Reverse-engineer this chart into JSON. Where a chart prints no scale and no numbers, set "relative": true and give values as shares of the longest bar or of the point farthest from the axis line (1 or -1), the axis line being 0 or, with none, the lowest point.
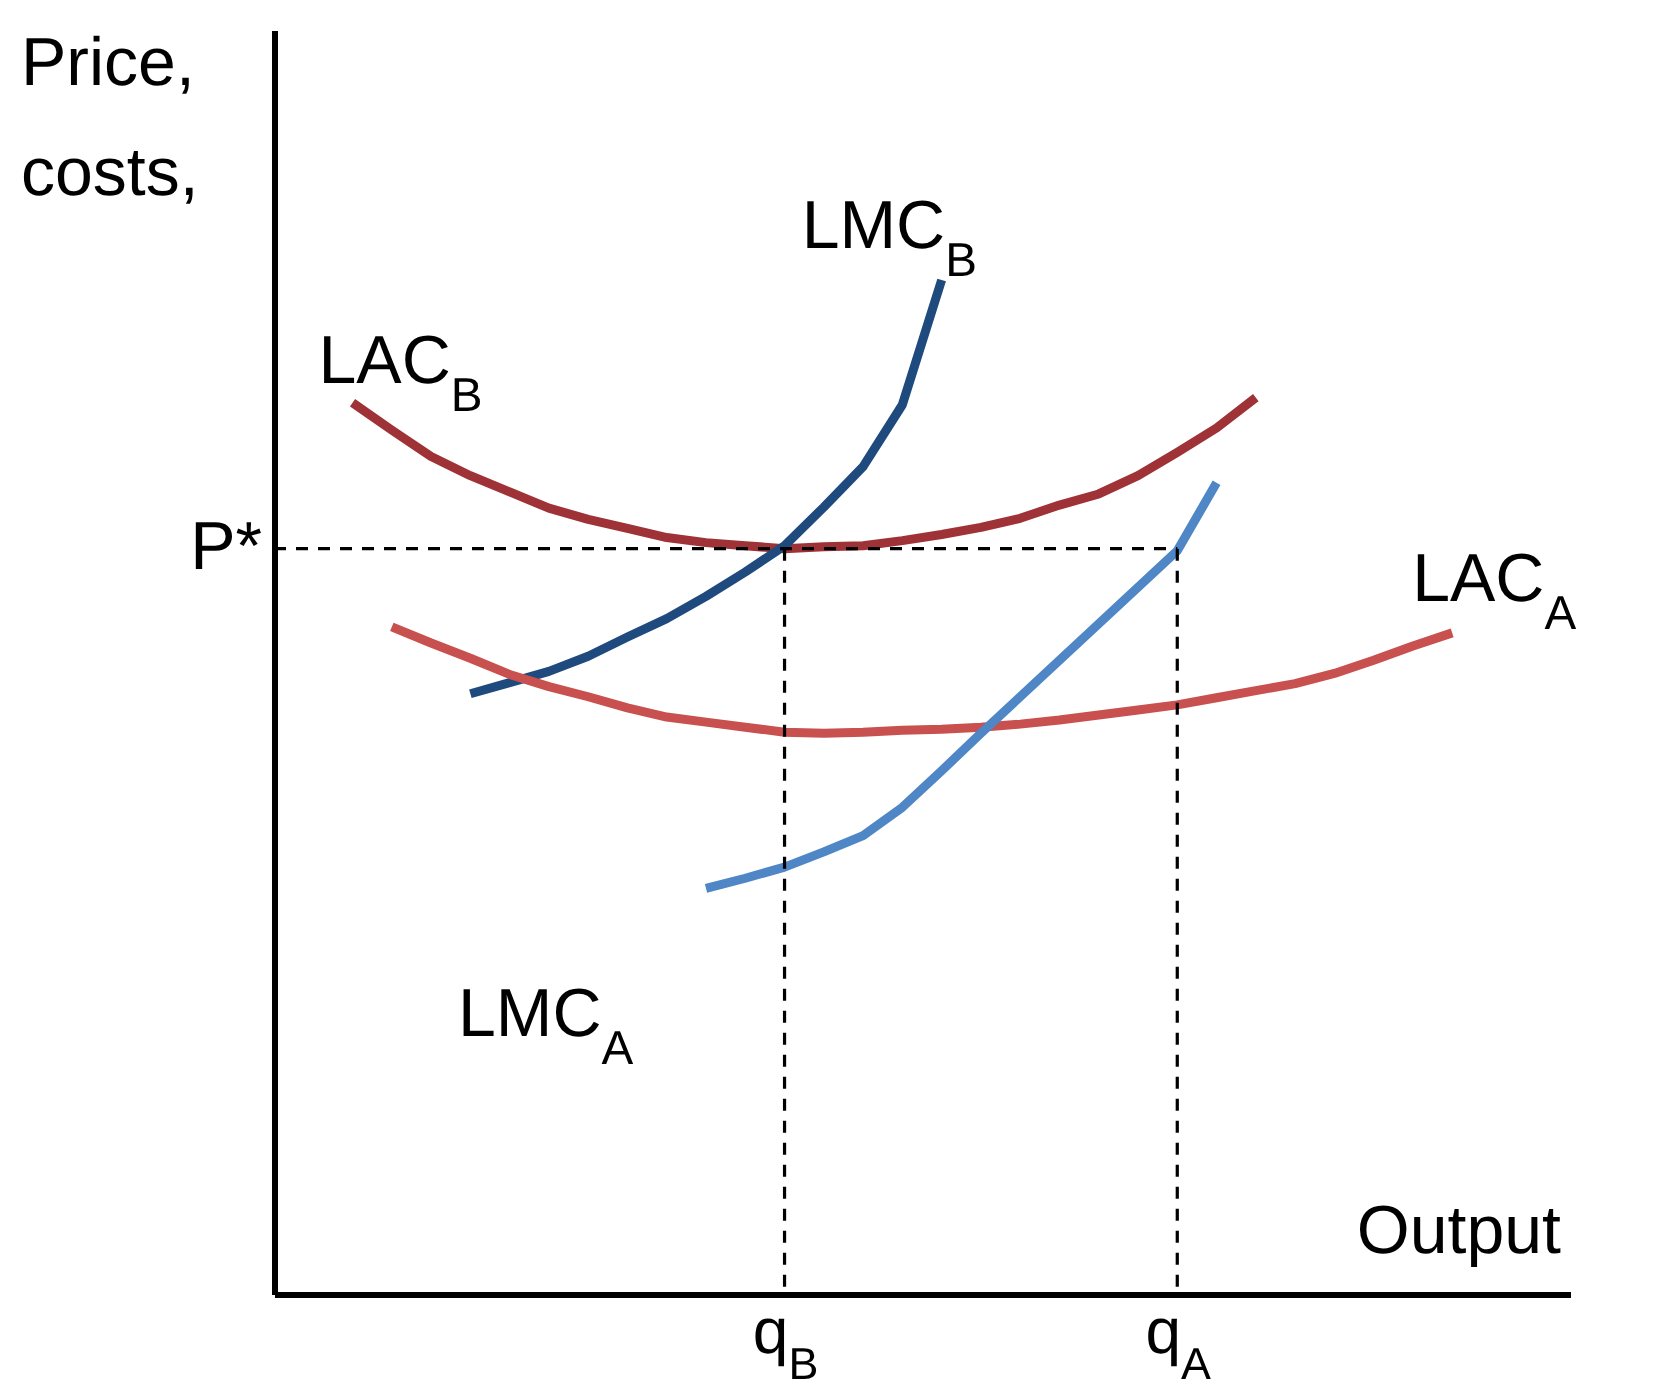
{
  "chart_data": {
    "type": "line",
    "relative": true,
    "xlabel": "Output",
    "ylabel": "Price,\ncosts,",
    "tick_labels": "x",
    "grid": false,
    "marker": "none",
    "categories": [
      null,
      null,
      null,
      null,
      null,
      null,
      null,
      null,
      null,
      null,
      null,
      null,
      null,
      "q$_{B}$",
      null,
      null,
      null,
      null,
      null,
      null,
      null,
      null,
      null,
      "q$_{A}$",
      null,
      null,
      null,
      null,
      null,
      null,
      null,
      null,
      null,
      null
    ],
    "series": [
      {
        "name": "LAC$_{B}$",
        "color": "#9e3236",
        "values": [
          null,
          null,
          0.879,
          0.852,
          0.826,
          0.807,
          0.791,
          0.775,
          0.764,
          0.755,
          0.746,
          0.741,
          0.738,
          0.735,
          0.737,
          0.738,
          0.743,
          0.749,
          0.756,
          0.765,
          0.778,
          0.789,
          0.807,
          0.83,
          0.854,
          0.884,
          null,
          null,
          null,
          null,
          null,
          null,
          null,
          null
        ]
      },
      {
        "name": "LMC$_{B}$",
        "color": "#1f4a7e",
        "values": [
          null,
          null,
          null,
          null,
          null,
          0.592,
          0.603,
          0.614,
          0.629,
          0.648,
          0.666,
          0.688,
          0.712,
          0.738,
          0.776,
          0.816,
          0.877,
          1,
          null,
          null,
          null,
          null,
          null,
          null,
          null,
          null,
          null,
          null,
          null,
          null,
          null,
          null,
          null,
          null
        ]
      },
      {
        "name": "LAC$_{A}$",
        "color": "#c8504e",
        "values": [
          null,
          null,
          null,
          0.658,
          0.642,
          0.627,
          0.611,
          0.599,
          0.589,
          0.578,
          0.569,
          0.564,
          0.559,
          0.554,
          0.553,
          0.554,
          0.556,
          0.557,
          0.559,
          0.562,
          0.566,
          0.571,
          0.576,
          0.581,
          0.588,
          0.595,
          0.602,
          0.612,
          0.625,
          0.639,
          0.652,
          null,
          null,
          null
        ]
      },
      {
        "name": "LMC$_{A}$",
        "color": "#4f86c6",
        "values": [
          null,
          null,
          null,
          null,
          null,
          null,
          null,
          null,
          null,
          null,
          null,
          0.4,
          0.41,
          0.421,
          0.436,
          0.452,
          0.48,
          0.516,
          0.553,
          0.589,
          0.625,
          0.661,
          0.697,
          0.733,
          0.8,
          null,
          null,
          null,
          null,
          null,
          null,
          null,
          null,
          null
        ]
      },
      {
        "color": "#000000",
        "line_style": "dashed",
        "values": [
          0.735,
          0.735,
          0.735,
          0.735,
          0.735,
          0.735,
          0.735,
          0.735,
          0.735,
          0.735,
          0.735,
          0.735,
          0.735,
          0.735,
          0.735,
          0.735,
          0.735,
          0.735,
          0.735,
          0.735,
          0.735,
          0.735,
          0.735,
          0.735,
          null,
          null,
          null,
          null,
          null,
          null,
          null,
          null,
          null,
          null
        ]
      },
      {
        "color": "#000000",
        "line_style": "dashed",
        "x": [
          "q$_{B}$",
          "q$_{B}$"
        ],
        "values": [
          0.735,
          0
        ]
      },
      {
        "color": "#000000",
        "line_style": "dashed",
        "x": [
          "q$_{A}$",
          "q$_{A}$"
        ],
        "values": [
          0.735,
          0
        ]
      }
    ],
    "annotations": [
      "P*"
    ]
  }
}
